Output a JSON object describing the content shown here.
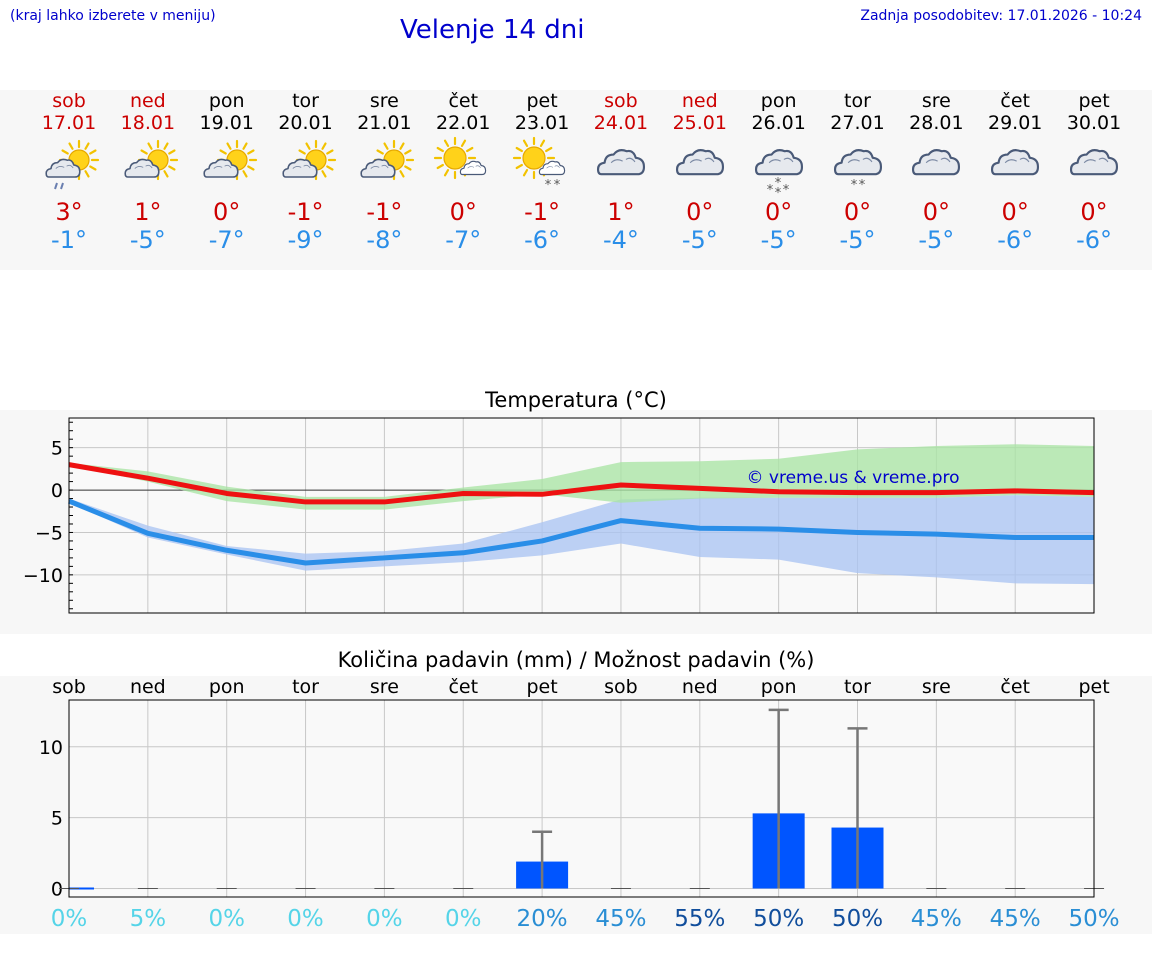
{
  "header": {
    "left_note": "(kraj lahko izberete v meniju)",
    "title": "Velenje 14 dni",
    "updated": "Zadnja posodobitev: 17.01.2026 - 10:24"
  },
  "colors": {
    "weekend": "#cc0000",
    "weekday": "#000000",
    "tmax": "#cc0000",
    "tmin": "#2a8ee8",
    "header": "#0000cc"
  },
  "days": [
    {
      "name": "sob",
      "date": "17.01",
      "weekend": true,
      "icon": "partly-cloudy-rain",
      "tmax": "3°",
      "tmin": "-1°"
    },
    {
      "name": "ned",
      "date": "18.01",
      "weekend": true,
      "icon": "partly-cloudy",
      "tmax": "1°",
      "tmin": "-5°"
    },
    {
      "name": "pon",
      "date": "19.01",
      "weekend": false,
      "icon": "partly-cloudy",
      "tmax": "0°",
      "tmin": "-7°"
    },
    {
      "name": "tor",
      "date": "20.01",
      "weekend": false,
      "icon": "partly-cloudy",
      "tmax": "-1°",
      "tmin": "-9°"
    },
    {
      "name": "sre",
      "date": "21.01",
      "weekend": false,
      "icon": "partly-cloudy",
      "tmax": "-1°",
      "tmin": "-8°"
    },
    {
      "name": "čet",
      "date": "22.01",
      "weekend": false,
      "icon": "sun-small-cloud",
      "tmax": "0°",
      "tmin": "-7°"
    },
    {
      "name": "pet",
      "date": "23.01",
      "weekend": false,
      "icon": "sun-cloud-snow",
      "tmax": "-1°",
      "tmin": "-6°"
    },
    {
      "name": "sob",
      "date": "24.01",
      "weekend": true,
      "icon": "cloudy",
      "tmax": "1°",
      "tmin": "-4°"
    },
    {
      "name": "ned",
      "date": "25.01",
      "weekend": true,
      "icon": "cloudy",
      "tmax": "0°",
      "tmin": "-5°"
    },
    {
      "name": "pon",
      "date": "26.01",
      "weekend": false,
      "icon": "cloudy-snow-heavy",
      "tmax": "0°",
      "tmin": "-5°"
    },
    {
      "name": "tor",
      "date": "27.01",
      "weekend": false,
      "icon": "cloudy-snow",
      "tmax": "0°",
      "tmin": "-5°"
    },
    {
      "name": "sre",
      "date": "28.01",
      "weekend": false,
      "icon": "cloudy",
      "tmax": "0°",
      "tmin": "-5°"
    },
    {
      "name": "čet",
      "date": "29.01",
      "weekend": false,
      "icon": "cloudy",
      "tmax": "0°",
      "tmin": "-6°"
    },
    {
      "name": "pet",
      "date": "30.01",
      "weekend": false,
      "icon": "cloudy",
      "tmax": "0°",
      "tmin": "-6°"
    }
  ],
  "chart_data": [
    {
      "type": "line",
      "title": "Temperatura (°C)",
      "watermark": "© vreme.us & vreme.pro",
      "ylim": [
        -14.5,
        8.5
      ],
      "yticks": [
        5,
        0,
        -5,
        -10
      ],
      "ytick_labels": [
        "5",
        "0",
        "−5",
        "−10"
      ],
      "x": [
        0,
        1,
        2,
        3,
        4,
        5,
        6,
        7,
        8,
        9,
        10,
        11,
        12,
        13
      ],
      "series": [
        {
          "name": "max",
          "color": "#ee1111",
          "values": [
            3.0,
            1.4,
            -0.4,
            -1.4,
            -1.4,
            -0.4,
            -0.5,
            0.6,
            0.2,
            -0.2,
            -0.3,
            -0.3,
            -0.1,
            -0.3
          ]
        },
        {
          "name": "min",
          "color": "#2a8ee8",
          "values": [
            -1.3,
            -5.1,
            -7.1,
            -8.6,
            -8.0,
            -7.4,
            -6.0,
            -3.6,
            -4.5,
            -4.6,
            -5.0,
            -5.2,
            -5.6,
            -5.6
          ]
        }
      ],
      "max_band": {
        "color": "#a9e4a4",
        "low": [
          2.9,
          1.0,
          -1.3,
          -2.3,
          -2.3,
          -1.3,
          -0.5,
          -1.5,
          -1.0,
          -0.9,
          -0.9,
          -0.9,
          -0.6,
          -0.8
        ],
        "high": [
          3.2,
          2.2,
          0.4,
          -0.8,
          -0.8,
          0.3,
          1.3,
          3.3,
          3.4,
          3.7,
          4.8,
          5.2,
          5.4,
          5.2
        ]
      },
      "min_band": {
        "color": "#aac4f2",
        "low": [
          -1.5,
          -5.6,
          -7.6,
          -9.5,
          -9.0,
          -8.5,
          -7.7,
          -6.3,
          -7.9,
          -8.2,
          -9.8,
          -10.3,
          -11.0,
          -11.1
        ],
        "high": [
          -1.0,
          -4.2,
          -6.6,
          -7.5,
          -7.2,
          -6.3,
          -3.8,
          -1.1,
          -0.9,
          -0.9,
          -0.9,
          -0.9,
          -0.6,
          -0.8
        ]
      }
    },
    {
      "type": "bar",
      "title": "Količina padavin (mm) / Možnost padavin (%)",
      "ylim": [
        -0.6,
        13.3
      ],
      "yticks": [
        10,
        5,
        0
      ],
      "ytick_labels": [
        "10",
        "5",
        "0"
      ],
      "categories": [
        "sob",
        "ned",
        "pon",
        "tor",
        "sre",
        "čet",
        "pet",
        "sob",
        "ned",
        "pon",
        "tor",
        "sre",
        "čet",
        "pet"
      ],
      "values": [
        0,
        0,
        0,
        0,
        0,
        0,
        1.9,
        0,
        0,
        5.3,
        4.3,
        0,
        0,
        0
      ],
      "error_high": [
        0,
        0,
        0,
        0,
        0,
        0,
        4.0,
        0,
        0,
        12.6,
        11.3,
        0,
        0,
        0
      ],
      "bar_color": "#0055ff",
      "probability_labels": [
        "0%",
        "5%",
        "0%",
        "0%",
        "0%",
        "0%",
        "20%",
        "45%",
        "55%",
        "50%",
        "50%",
        "45%",
        "45%",
        "50%"
      ],
      "probability_colors": [
        "#55d4e8",
        "#55d4e8",
        "#55d4e8",
        "#55d4e8",
        "#55d4e8",
        "#55d4e8",
        "#2a8ed4",
        "#2a8ed4",
        "#114e9c",
        "#114e9c",
        "#114e9c",
        "#2a8ed4",
        "#2a8ed4",
        "#2a8ed4"
      ]
    }
  ]
}
